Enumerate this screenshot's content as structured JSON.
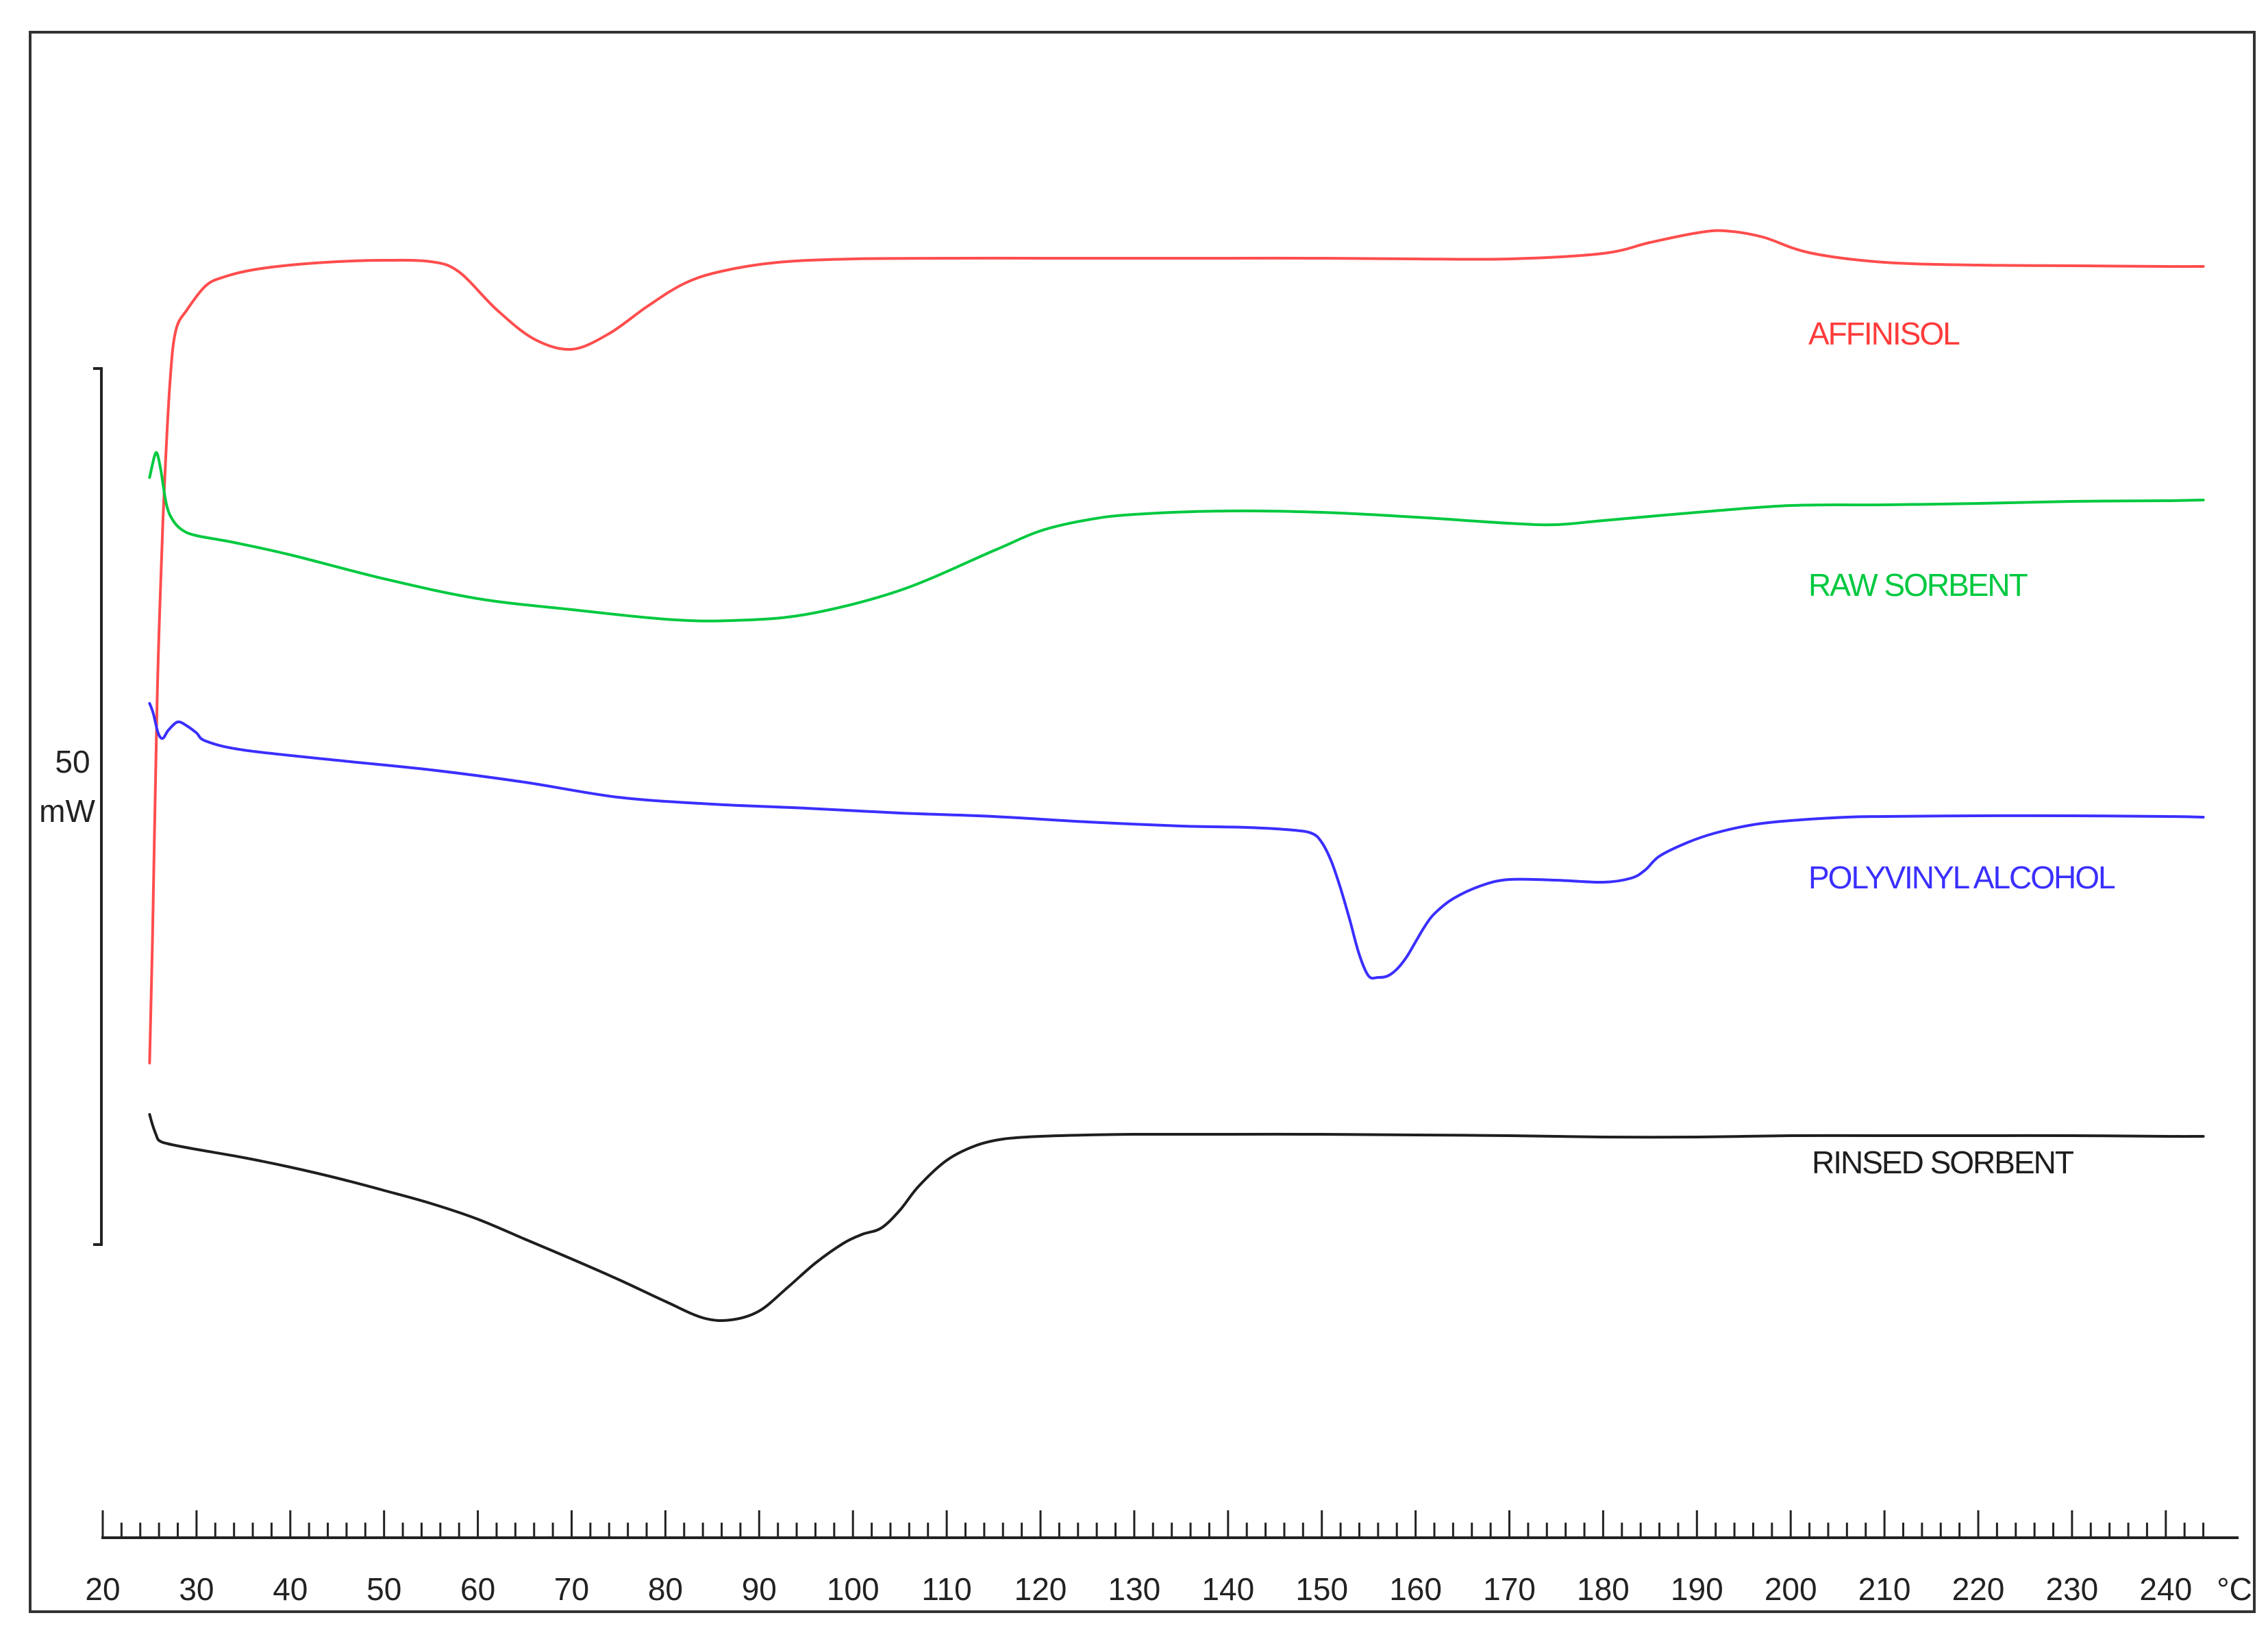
{
  "chart_data": {
    "type": "line",
    "xlabel": "",
    "ylabel": "",
    "x_unit": "°C",
    "xlim": [
      20,
      244
    ],
    "x_ticks": [
      20,
      30,
      40,
      50,
      60,
      70,
      80,
      90,
      100,
      110,
      120,
      130,
      140,
      150,
      160,
      170,
      180,
      190,
      200,
      210,
      220,
      230,
      240
    ],
    "grid": false,
    "legend": "inline labels right of curves",
    "scale_bar": {
      "value": "50",
      "unit": "mW"
    },
    "series": [
      {
        "name": "AFFINISOL",
        "color": "#ff4d4d",
        "x": [
          25.0,
          25.3,
          25.8,
          26.2,
          26.6,
          27.2,
          27.8,
          29,
          31,
          33,
          36,
          40,
          45,
          50,
          55,
          58,
          62,
          66,
          70,
          74,
          78,
          82,
          86,
          92,
          100,
          110,
          120,
          130,
          140,
          150,
          160,
          170,
          180,
          185,
          190,
          193,
          197,
          202,
          210,
          220,
          230,
          240,
          244
        ],
        "y": [
          -113,
          -95,
          -60,
          -42,
          -28,
          -13,
          -6,
          -3,
          0.5,
          1.8,
          2.8,
          3.5,
          4.0,
          4.2,
          4.0,
          2.5,
          -3.0,
          -7.3,
          -8.8,
          -6.5,
          -2.6,
          0.8,
          2.6,
          3.9,
          4.4,
          4.5,
          4.5,
          4.5,
          4.5,
          4.5,
          4.4,
          4.4,
          5.2,
          6.8,
          8.2,
          8.5,
          7.6,
          5.3,
          3.9,
          3.5,
          3.4,
          3.3,
          3.3
        ]
      },
      {
        "name": "RAW SORBENT",
        "color": "#00c940",
        "x": [
          25.0,
          25.5,
          25.8,
          26.2,
          26.8,
          27.5,
          28.5,
          30,
          34,
          40,
          50,
          60,
          70,
          80,
          87,
          95,
          105,
          115,
          120,
          125,
          130,
          140,
          150,
          160,
          170,
          175,
          180,
          190,
          200,
          210,
          220,
          230,
          240,
          244
        ],
        "y": [
          -27.5,
          -24.5,
          -24.0,
          -26.5,
          -31.5,
          -33.8,
          -35.2,
          -36.0,
          -37.0,
          -38.8,
          -42.3,
          -45.2,
          -46.8,
          -48.2,
          -48.4,
          -47.5,
          -44.0,
          -38.2,
          -35.3,
          -33.7,
          -32.9,
          -32.4,
          -32.6,
          -33.3,
          -34.2,
          -34.4,
          -33.8,
          -32.6,
          -31.6,
          -31.5,
          -31.3,
          -31.0,
          -30.9,
          -30.8
        ]
      },
      {
        "name": "POLYVINYL ALCOHOL",
        "color": "#3a2fff",
        "x": [
          25.0,
          25.4,
          25.9,
          26.4,
          27.0,
          28.0,
          29,
          30,
          31,
          35,
          45,
          55,
          65,
          75,
          85,
          95,
          105,
          115,
          125,
          135,
          142,
          147,
          149,
          150,
          151,
          152,
          153,
          154,
          155,
          156,
          157,
          158,
          159,
          160,
          161,
          162,
          164,
          167,
          170,
          175,
          180,
          183,
          184.5,
          186,
          189,
          192,
          196,
          200,
          206,
          210,
          220,
          230,
          240,
          244
        ],
        "y": [
          -60.5,
          -62,
          -64.8,
          -65.6,
          -64.4,
          -63.2,
          -63.8,
          -64.8,
          -66.0,
          -67.3,
          -68.8,
          -70.2,
          -72.0,
          -74.2,
          -75.2,
          -75.8,
          -76.5,
          -77.0,
          -77.8,
          -78.4,
          -78.6,
          -79.0,
          -79.5,
          -80.8,
          -83.5,
          -87.5,
          -92.2,
          -97.2,
          -100.3,
          -100.5,
          -100.3,
          -99.3,
          -97.6,
          -95.3,
          -93.0,
          -91.2,
          -89.0,
          -87.1,
          -86.2,
          -86.3,
          -86.6,
          -86.0,
          -84.8,
          -82.8,
          -80.8,
          -79.4,
          -78.2,
          -77.6,
          -77.1,
          -77.0,
          -76.9,
          -76.9,
          -77.0,
          -77.1
        ]
      },
      {
        "name": "RINSED SORBENT",
        "color": "#1e1e1e",
        "x": [
          25.0,
          25.3,
          25.7,
          26.0,
          27,
          30,
          35,
          40,
          45,
          50,
          55,
          60,
          65,
          70,
          75,
          80,
          84,
          87,
          90,
          93,
          96,
          99,
          101,
          103,
          105,
          107,
          110,
          113,
          116,
          120,
          125,
          130,
          140,
          150,
          160,
          170,
          180,
          190,
          200,
          210,
          220,
          230,
          240,
          244
        ],
        "y": [
          -120.5,
          -122,
          -123.5,
          -124.3,
          -124.8,
          -125.6,
          -126.8,
          -128.2,
          -129.8,
          -131.6,
          -133.5,
          -135.8,
          -138.7,
          -141.6,
          -144.6,
          -147.8,
          -150.2,
          -150.5,
          -149.2,
          -145.8,
          -142.2,
          -139.3,
          -138.0,
          -137.1,
          -134.5,
          -131.0,
          -127.2,
          -125.1,
          -124.1,
          -123.7,
          -123.5,
          -123.4,
          -123.4,
          -123.4,
          -123.5,
          -123.6,
          -123.8,
          -123.8,
          -123.6,
          -123.6,
          -123.6,
          -123.6,
          -123.7,
          -123.7
        ]
      }
    ]
  },
  "labels": {
    "affinisol": "AFFINISOL",
    "raw_sorbent": "RAW SORBENT",
    "polyvinyl_alcohol": "POLYVINYL ALCOHOL",
    "rinsed_sorbent": "RINSED SORBENT",
    "scale_value": "50",
    "scale_unit": "mW",
    "x_unit": "°C"
  }
}
